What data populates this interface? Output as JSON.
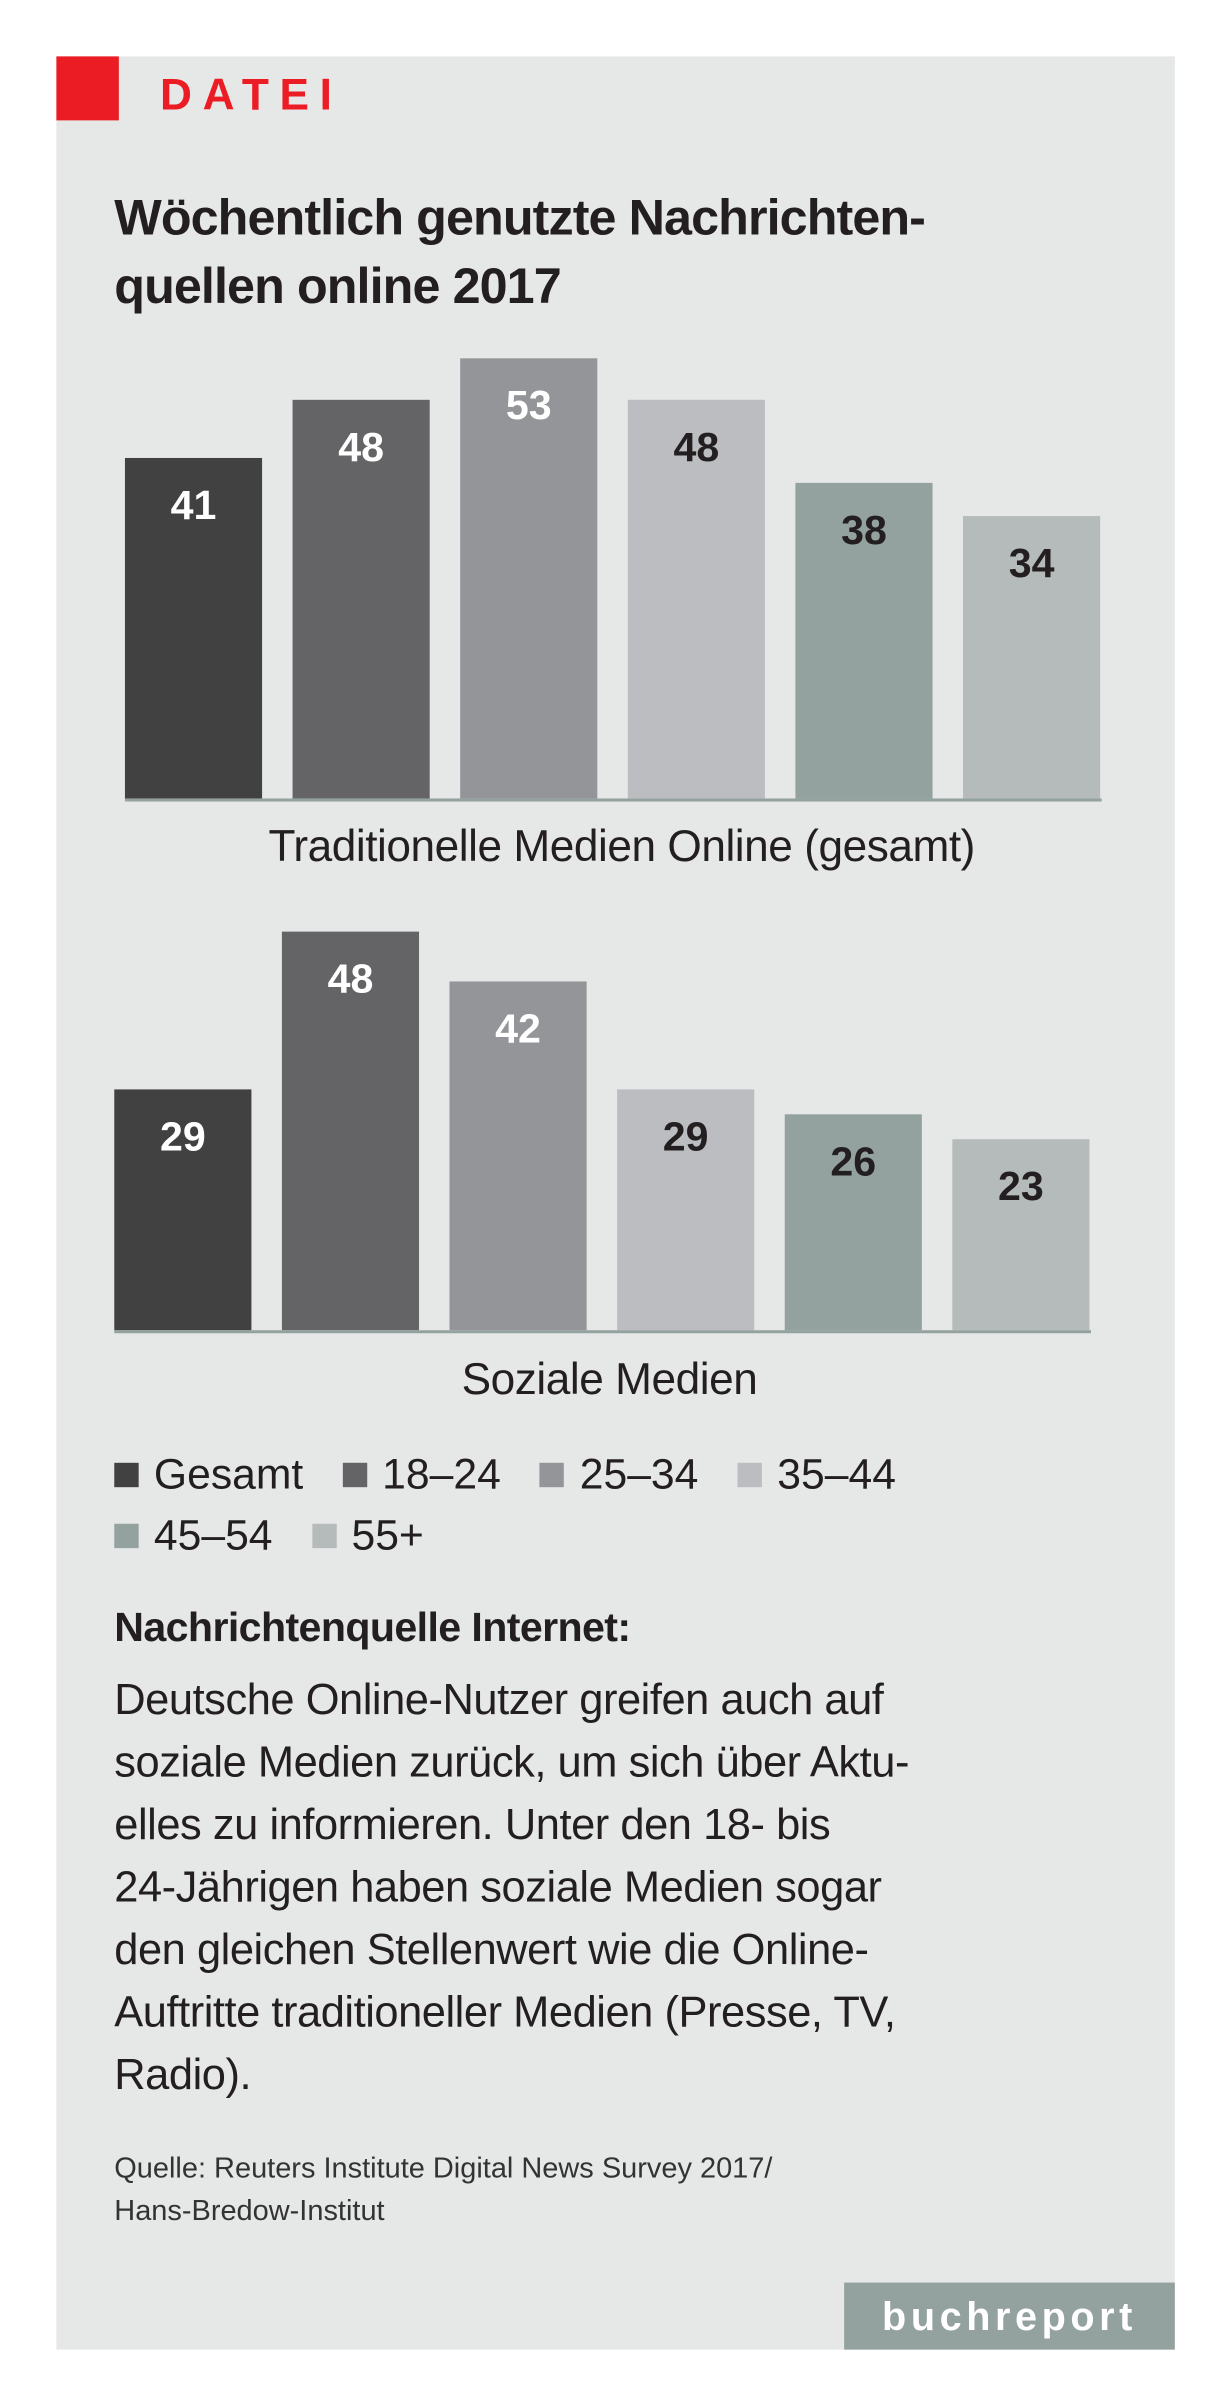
{
  "kicker": "DATEI",
  "title_lines": [
    "Wöchentlich genutzte Nachrichten-",
    "quellen online 2017"
  ],
  "colors": {
    "accent": "#ec1c24",
    "background": "#e6e7e7",
    "series": [
      "#414141",
      "#646466",
      "#939598",
      "#bbbdc0",
      "#93a19f",
      "#b5bbba"
    ]
  },
  "chart_data": [
    {
      "type": "bar",
      "title": "Traditionelle Medien Online (gesamt)",
      "categories": [
        "Gesamt",
        "18–24",
        "25–34",
        "35–44",
        "45–54",
        "55+"
      ],
      "values": [
        41,
        48,
        53,
        48,
        38,
        34
      ],
      "ylim": [
        0,
        53
      ],
      "grid": false
    },
    {
      "type": "bar",
      "title": "Soziale Medien",
      "categories": [
        "Gesamt",
        "18–24",
        "25–34",
        "35–44",
        "45–54",
        "55+"
      ],
      "values": [
        29,
        48,
        42,
        29,
        26,
        23
      ],
      "ylim": [
        0,
        53
      ],
      "grid": false
    }
  ],
  "legend": {
    "placement": "bottom",
    "items": [
      "Gesamt",
      "18–24",
      "25–34",
      "35–44",
      "45–54",
      "55+"
    ]
  },
  "subhead": "Nachrichtenquelle Internet:",
  "body_lines": [
    "Deutsche Online-Nutzer greifen auch auf",
    "soziale Medien zurück, um sich über Aktu-",
    "elles zu informieren. Unter den 18- bis",
    "24-Jährigen haben soziale Medien sogar",
    "den gleichen Stellenwert wie die Online-",
    "Auftritte traditioneller Medien (Presse, TV,",
    "Radio)."
  ],
  "source_lines": [
    "Quelle: Reuters Institute Digital News Survey 2017/",
    "Hans-Bredow-Institut"
  ],
  "brand": "buchreport"
}
